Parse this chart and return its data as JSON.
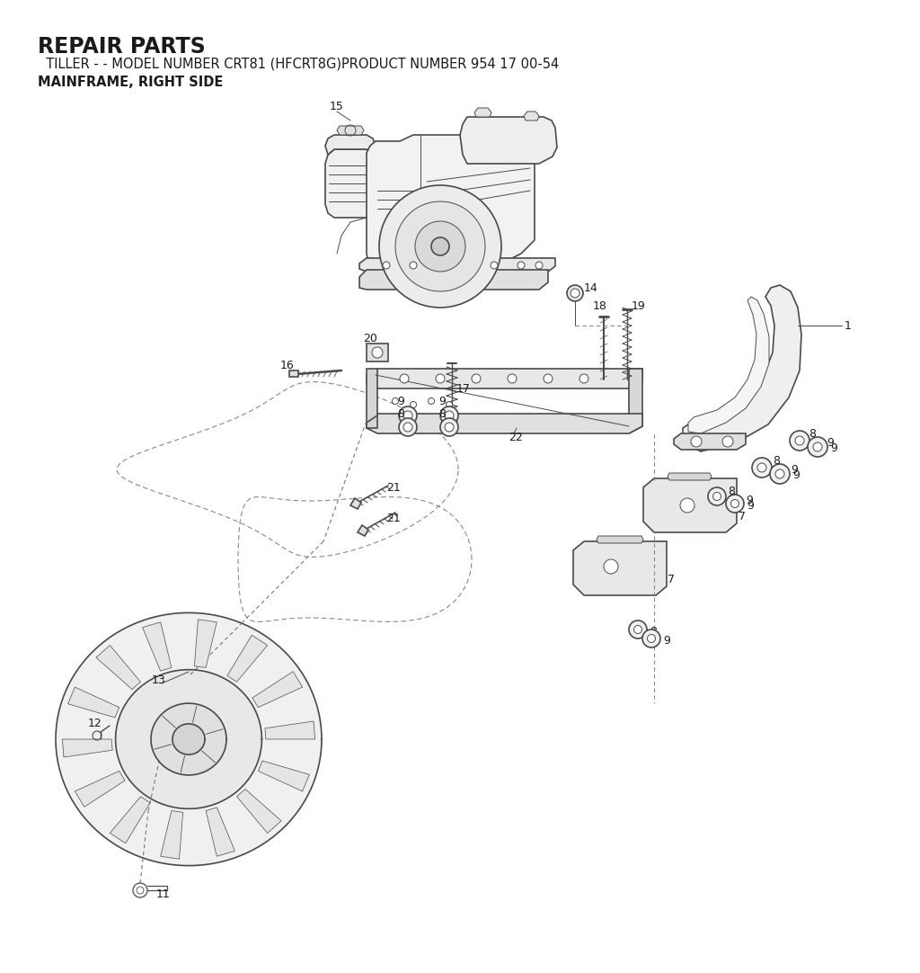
{
  "title": "REPAIR PARTS",
  "subtitle": "  TILLER - - MODEL NUMBER CRT81 (HFCRT8G)PRODUCT NUMBER 954 17 00-54",
  "subtitle2": "MAINFRAME, RIGHT SIDE",
  "bg_color": "#ffffff",
  "text_color": "#1a1a1a",
  "line_color": "#4a4a4a",
  "title_fontsize": 17,
  "subtitle_fontsize": 10.5,
  "part_label_fontsize": 8.5
}
